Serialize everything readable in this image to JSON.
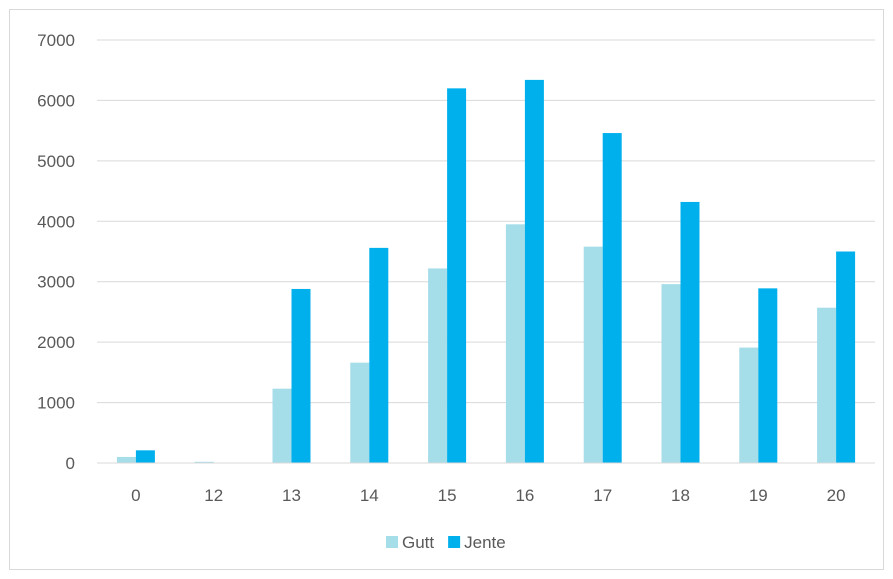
{
  "chart_data": {
    "type": "bar",
    "categories": [
      "0",
      "12",
      "13",
      "14",
      "15",
      "16",
      "17",
      "18",
      "19",
      "20"
    ],
    "series": [
      {
        "name": "Gutt",
        "color": "#a5dde9",
        "values": [
          100,
          20,
          1230,
          1660,
          3220,
          3950,
          3580,
          2960,
          1910,
          2570
        ]
      },
      {
        "name": "Jente",
        "color": "#00b0ec",
        "values": [
          210,
          0,
          2880,
          3560,
          6200,
          6340,
          5460,
          4320,
          2890,
          3500
        ]
      }
    ],
    "yticks": [
      "0",
      "1000",
      "2000",
      "3000",
      "4000",
      "5000",
      "6000",
      "7000"
    ],
    "ylim": [
      0,
      7000
    ],
    "grid": true,
    "legend_position": "bottom",
    "title": "",
    "xlabel": "",
    "ylabel": ""
  }
}
